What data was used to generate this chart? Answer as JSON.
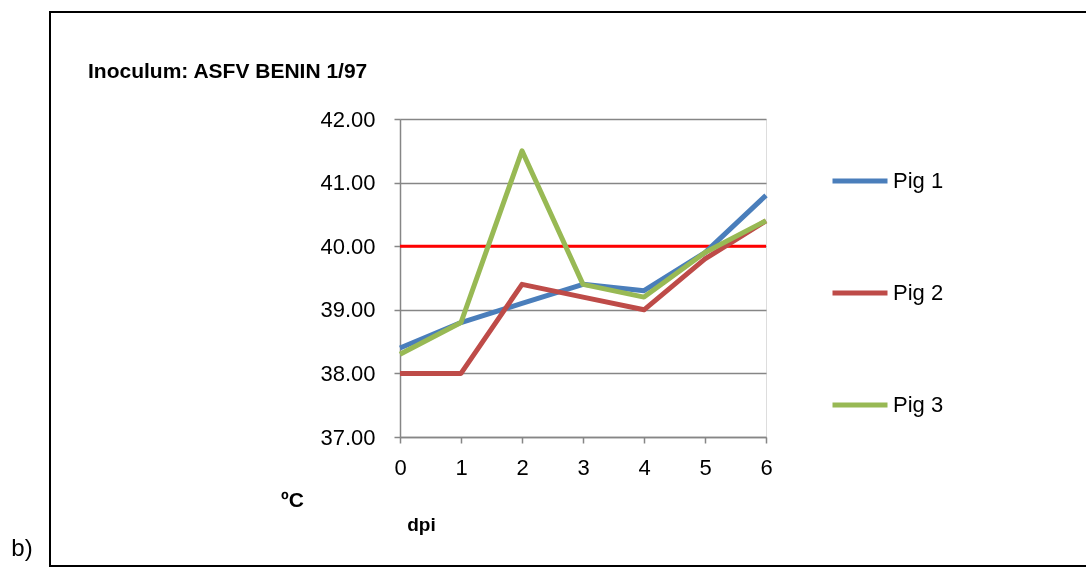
{
  "chart_data": {
    "type": "line",
    "title": "Inoculum: ASFV BENIN 1/97",
    "xlabel": "dpi",
    "ylabel": "ºC",
    "annotations": [
      "b)"
    ],
    "x": [
      0,
      1,
      2,
      3,
      4,
      5,
      6
    ],
    "series": [
      {
        "name": "Pig 1",
        "color": "#4a7ebb",
        "values": [
          38.4,
          38.8,
          39.1,
          39.4,
          39.3,
          39.9,
          40.8
        ]
      },
      {
        "name": "Pig 2",
        "color": "#be4b48",
        "values": [
          38.0,
          38.0,
          39.4,
          39.2,
          39.0,
          39.8,
          40.4
        ]
      },
      {
        "name": "Pig 3",
        "color": "#98b954",
        "values": [
          38.3,
          38.8,
          41.5,
          39.4,
          39.2,
          39.9,
          40.4
        ]
      }
    ],
    "xlim": [
      0,
      6
    ],
    "xticks": [
      0,
      1,
      2,
      3,
      4,
      5,
      6
    ],
    "ylim": [
      37,
      42
    ],
    "yticks": [
      {
        "value": 37,
        "label": "37.00"
      },
      {
        "value": 38,
        "label": "38.00"
      },
      {
        "value": 39,
        "label": "39.00"
      },
      {
        "value": 40,
        "label": "40.00"
      },
      {
        "value": 41,
        "label": "41.00"
      },
      {
        "value": 42,
        "label": "42.00"
      }
    ],
    "ref_lines": [
      {
        "axis": "y",
        "value": 40,
        "color": "#ff0000"
      }
    ],
    "grid": "y",
    "legend": "right"
  }
}
